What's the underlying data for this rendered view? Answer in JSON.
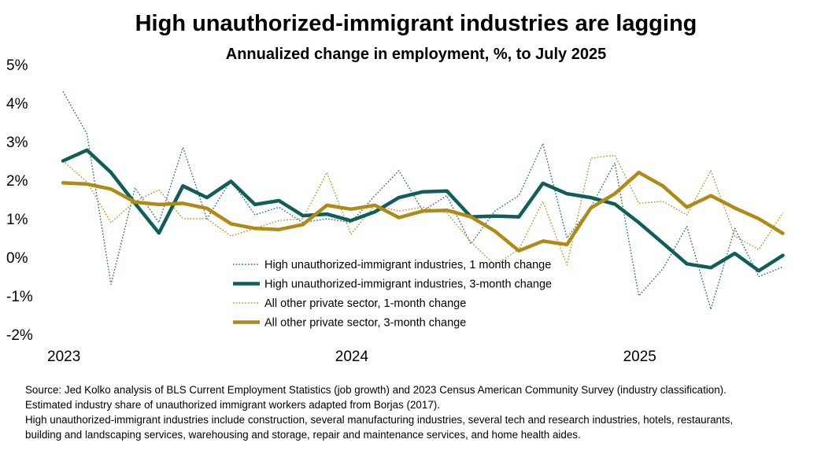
{
  "title": "High unauthorized-immigrant industries are lagging",
  "subtitle": "Annualized change in employment, %, to July 2025",
  "source_lines": [
    "Source: Jed Kolko analysis of BLS Current Employment Statistics (job growth) and 2023 Census American Community Survey (industry classification).",
    "Estimated industry share of unauthorized immigrant workers adapted from Borjas (2017).",
    "High unauthorized-immigrant industries include construction, several manufacturing industries, several tech and research industries, hotels, restaurants,",
    "building and landscaping services, warehousing and storage, repair and maintenance services, and home health aides."
  ],
  "chart_data": {
    "type": "line",
    "title": "High unauthorized-immigrant industries are lagging",
    "subtitle": "Annualized change in employment, %, to July 2025",
    "xlabel": "",
    "ylabel": "",
    "ylim": [
      -2,
      5
    ],
    "y_ticks": [
      5,
      4,
      3,
      2,
      1,
      0,
      -1,
      -2
    ],
    "y_tick_labels": [
      "5%",
      "4%",
      "3%",
      "2%",
      "1%",
      "0%",
      "-1%",
      "-2%"
    ],
    "x_tick_labels": [
      {
        "label": "2023",
        "index": 0
      },
      {
        "label": "2024",
        "index": 12
      },
      {
        "label": "2025",
        "index": 24
      }
    ],
    "x_index_range": [
      0,
      31
    ],
    "grid": false,
    "legend_position": "center-left",
    "series": [
      {
        "name": "High unauthorized-immigrant industries, 1 month change",
        "color": "#236e6a",
        "style": "dotted",
        "values": [
          4.3,
          3.2,
          -0.7,
          1.8,
          0.9,
          2.85,
          1.0,
          2.0,
          1.1,
          1.3,
          0.9,
          1.0,
          0.9,
          1.6,
          2.25,
          1.2,
          1.6,
          0.35,
          1.2,
          1.6,
          2.95,
          0.5,
          1.3,
          2.45,
          -1.0,
          -0.3,
          0.8,
          -1.35,
          0.75,
          -0.5,
          -0.25
        ]
      },
      {
        "name": "High unauthorized-immigrant industries, 3-month change",
        "color": "#0f5e5a",
        "style": "solid-thick",
        "values": [
          2.5,
          2.78,
          2.2,
          1.4,
          0.63,
          1.85,
          1.55,
          1.97,
          1.37,
          1.47,
          1.08,
          1.12,
          0.95,
          1.18,
          1.55,
          1.7,
          1.72,
          1.05,
          1.07,
          1.05,
          1.92,
          1.65,
          1.55,
          1.38,
          0.9,
          0.37,
          -0.17,
          -0.27,
          0.1,
          -0.35,
          0.05
        ]
      },
      {
        "name": "All other private sector, 1-month change",
        "color": "#b5911f",
        "style": "dotted",
        "values": [
          2.5,
          1.95,
          0.9,
          1.45,
          1.75,
          1.0,
          1.0,
          0.55,
          0.75,
          0.95,
          1.0,
          2.2,
          0.6,
          1.35,
          1.2,
          1.3,
          1.15,
          0.4,
          -0.2,
          0.2,
          1.45,
          -0.2,
          2.57,
          2.65,
          1.4,
          1.45,
          1.1,
          2.25,
          0.55,
          0.2,
          1.15
        ]
      },
      {
        "name": "All other private sector, 3-month change",
        "color": "#b08a17",
        "style": "solid-thick",
        "values": [
          1.93,
          1.9,
          1.77,
          1.43,
          1.37,
          1.4,
          1.27,
          0.87,
          0.75,
          0.72,
          0.85,
          1.35,
          1.25,
          1.35,
          1.03,
          1.2,
          1.22,
          1.05,
          0.68,
          0.17,
          0.42,
          0.33,
          1.28,
          1.65,
          2.2,
          1.85,
          1.3,
          1.6,
          1.28,
          1.0,
          0.62
        ]
      }
    ]
  }
}
